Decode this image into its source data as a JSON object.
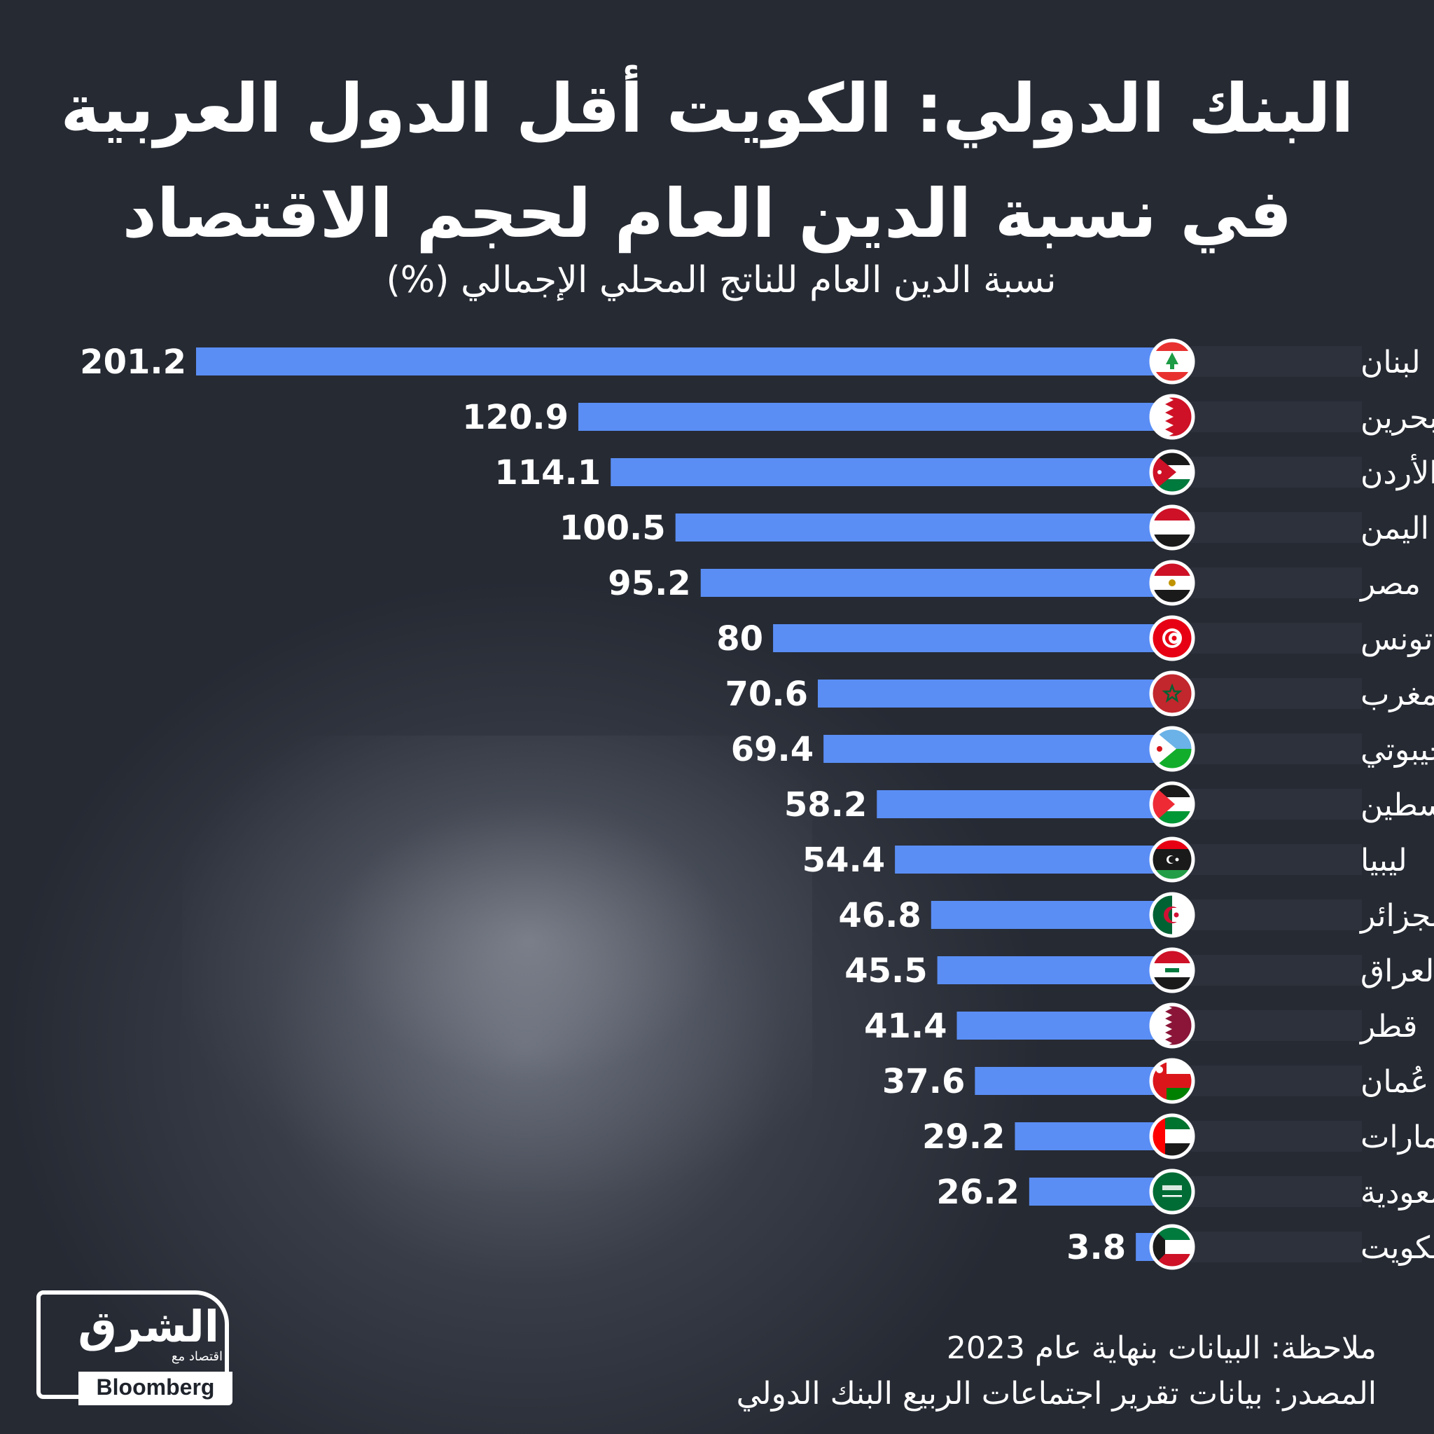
{
  "header": {
    "title_line1": "البنك الدولي: الكويت أقل الدول العربية",
    "title_line2": "في نسبة الدين العام لحجم الاقتصاد",
    "subtitle": "نسبة الدين العام للناتج المحلي الإجمالي (%)"
  },
  "footer": {
    "note": "ملاحظة: البيانات بنهاية عام 2023",
    "source": "المصدر: بيانات تقرير اجتماعات الربيع البنك الدولي"
  },
  "logo": {
    "brand": "الشرق",
    "sub": "اقتصاد مع",
    "partner": "Bloomberg"
  },
  "colors": {
    "background": "#262a33",
    "bar": "#5a8ef5",
    "text": "#ffffff"
  },
  "chart_data": {
    "type": "bar",
    "orientation": "horizontal",
    "title": "البنك الدولي: الكويت أقل الدول العربية في نسبة الدين العام لحجم الاقتصاد",
    "xlabel": "نسبة الدين العام للناتج المحلي الإجمالي (%)",
    "ylabel": "",
    "xlim": [
      0,
      201.2
    ],
    "categories": [
      "لبنان",
      "البحرين",
      "الأردن",
      "اليمن",
      "مصر",
      "تونس",
      "المغرب",
      "جيبوتي",
      "فلسطين",
      "ليبيا",
      "الجزائر",
      "العراق",
      "قطر",
      "عُمان",
      "الإمارات",
      "السعودية",
      "الكويت"
    ],
    "flags": [
      "lebanon-flag-icon",
      "bahrain-flag-icon",
      "jordan-flag-icon",
      "yemen-flag-icon",
      "egypt-flag-icon",
      "tunisia-flag-icon",
      "morocco-flag-icon",
      "djibouti-flag-icon",
      "palestine-flag-icon",
      "libya-flag-icon",
      "algeria-flag-icon",
      "iraq-flag-icon",
      "qatar-flag-icon",
      "oman-flag-icon",
      "uae-flag-icon",
      "saudi-flag-icon",
      "kuwait-flag-icon"
    ],
    "values": [
      201.2,
      120.9,
      114.1,
      100.5,
      95.2,
      80,
      70.6,
      69.4,
      58.2,
      54.4,
      46.8,
      45.5,
      41.4,
      37.6,
      29.2,
      26.2,
      3.8
    ],
    "value_labels": [
      "201.2",
      "120.9",
      "114.1",
      "100.5",
      "95.2",
      "80",
      "70.6",
      "69.4",
      "58.2",
      "54.4",
      "46.8",
      "45.5",
      "41.4",
      "37.6",
      "29.2",
      "26.2",
      "3.8"
    ],
    "grid": false,
    "legend": "none"
  }
}
